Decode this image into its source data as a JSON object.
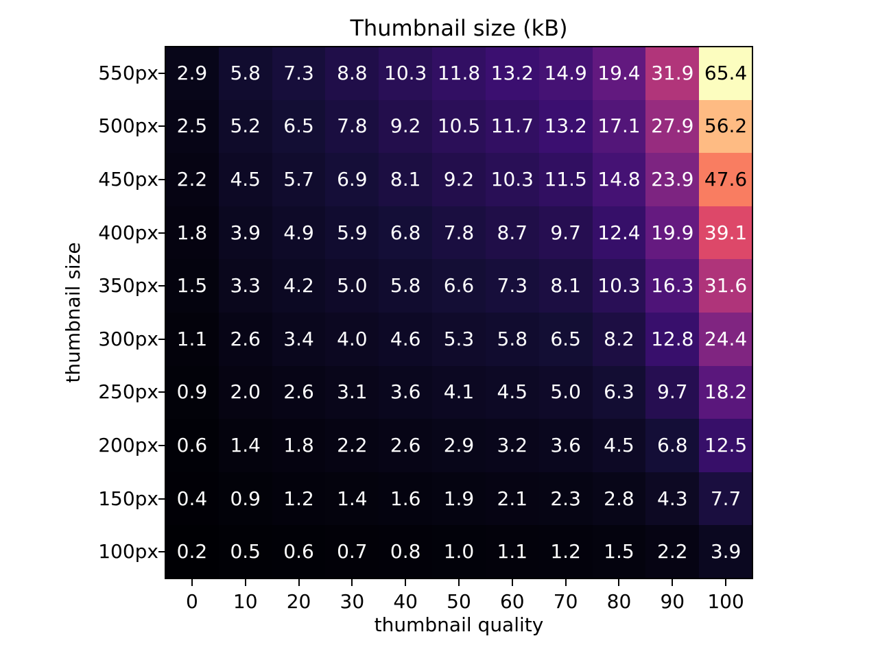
{
  "chart_data": {
    "type": "heatmap",
    "title": "Thumbnail size (kB)",
    "xlabel": "thumbnail quality",
    "ylabel": "thumbnail size",
    "x_ticks": [
      "0",
      "10",
      "20",
      "30",
      "40",
      "50",
      "60",
      "70",
      "80",
      "90",
      "100"
    ],
    "y_ticks": [
      "550px",
      "500px",
      "450px",
      "400px",
      "350px",
      "300px",
      "250px",
      "200px",
      "150px",
      "100px"
    ],
    "values": [
      [
        2.9,
        5.8,
        7.3,
        8.8,
        10.3,
        11.8,
        13.2,
        14.9,
        19.4,
        31.9,
        65.4
      ],
      [
        2.5,
        5.2,
        6.5,
        7.8,
        9.2,
        10.5,
        11.7,
        13.2,
        17.1,
        27.9,
        56.2
      ],
      [
        2.2,
        4.5,
        5.7,
        6.9,
        8.1,
        9.2,
        10.3,
        11.5,
        14.8,
        23.9,
        47.6
      ],
      [
        1.8,
        3.9,
        4.9,
        5.9,
        6.8,
        7.8,
        8.7,
        9.7,
        12.4,
        19.9,
        39.1
      ],
      [
        1.5,
        3.3,
        4.2,
        5.0,
        5.8,
        6.6,
        7.3,
        8.1,
        10.3,
        16.3,
        31.6
      ],
      [
        1.1,
        2.6,
        3.4,
        4.0,
        4.6,
        5.3,
        5.8,
        6.5,
        8.2,
        12.8,
        24.4
      ],
      [
        0.9,
        2.0,
        2.6,
        3.1,
        3.6,
        4.1,
        4.5,
        5.0,
        6.3,
        9.7,
        18.2
      ],
      [
        0.6,
        1.4,
        1.8,
        2.2,
        2.6,
        2.9,
        3.2,
        3.6,
        4.5,
        6.8,
        12.5
      ],
      [
        0.4,
        0.9,
        1.2,
        1.4,
        1.6,
        1.9,
        2.1,
        2.3,
        2.8,
        4.3,
        7.7
      ],
      [
        0.2,
        0.5,
        0.6,
        0.7,
        0.8,
        1.0,
        1.1,
        1.2,
        1.5,
        2.2,
        3.9
      ]
    ],
    "vmin": 0.2,
    "vmax": 65.4,
    "value_decimals": 1,
    "colormap": "magma",
    "colormap_stops": [
      "#000004",
      "#140e36",
      "#3b0f70",
      "#641a80",
      "#8c2981",
      "#b73779",
      "#de4968",
      "#f7705c",
      "#fe9f6d",
      "#fecf92",
      "#fcfdbf"
    ],
    "annotation_color_light": "#ffffff",
    "annotation_color_dark": "#000000",
    "annotation_dark_threshold": 0.65,
    "grid": false,
    "legend": "none",
    "background_color": "#ffffff",
    "spine_color": "#000000"
  }
}
